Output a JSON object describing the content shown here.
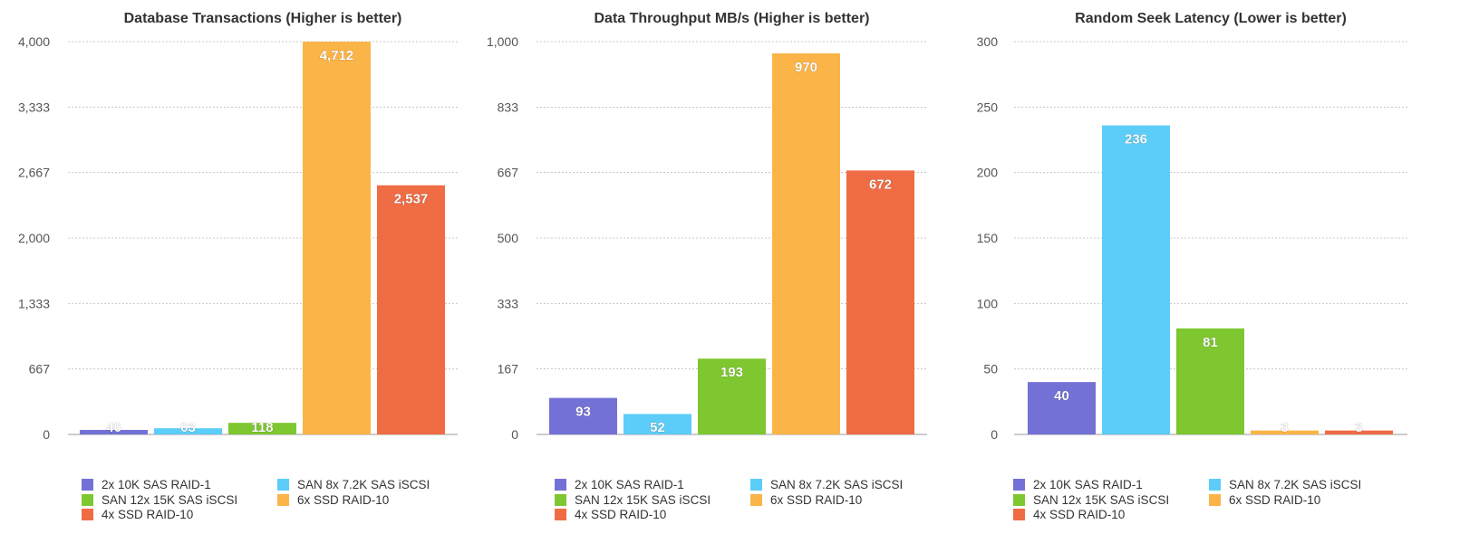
{
  "colors": {
    "2x 10K SAS RAID-1": "#7471d6",
    "SAN 8x 7.2K SAS iSCSI": "#5ccdf8",
    "SAN 12x 15K SAS iSCSI": "#7ec730",
    "6x SSD RAID-10": "#fbb448",
    "4x SSD RAID-10": "#f06c44"
  },
  "chart_data": [
    {
      "type": "bar",
      "title": "Database Transactions (Higher is better)",
      "xlabel": "",
      "ylabel": "",
      "ylim": [
        0,
        4000
      ],
      "yticks": [
        "0",
        "667",
        "1,333",
        "2,000",
        "2,667",
        "3,333",
        "4,000"
      ],
      "ytick_values": [
        0,
        667,
        1333,
        2000,
        2667,
        3333,
        4000
      ],
      "grid": true,
      "legend_position": "bottom",
      "series": [
        {
          "name": "2x 10K SAS RAID-1",
          "value": 46,
          "label": "46"
        },
        {
          "name": "SAN 8x 7.2K SAS iSCSI",
          "value": 63,
          "label": "63"
        },
        {
          "name": "SAN 12x 15K SAS iSCSI",
          "value": 118,
          "label": "118"
        },
        {
          "name": "6x SSD RAID-10",
          "value": 4712,
          "label": "4,712"
        },
        {
          "name": "4x SSD RAID-10",
          "value": 2537,
          "label": "2,537"
        }
      ]
    },
    {
      "type": "bar",
      "title": "Data Throughput MB/s (Higher is better)",
      "xlabel": "",
      "ylabel": "",
      "ylim": [
        0,
        1000
      ],
      "yticks": [
        "0",
        "167",
        "333",
        "500",
        "667",
        "833",
        "1,000"
      ],
      "ytick_values": [
        0,
        167,
        333,
        500,
        667,
        833,
        1000
      ],
      "grid": true,
      "legend_position": "bottom",
      "series": [
        {
          "name": "2x 10K SAS RAID-1",
          "value": 93,
          "label": "93"
        },
        {
          "name": "SAN 8x 7.2K SAS iSCSI",
          "value": 52,
          "label": "52"
        },
        {
          "name": "SAN 12x 15K SAS iSCSI",
          "value": 193,
          "label": "193"
        },
        {
          "name": "6x SSD RAID-10",
          "value": 970,
          "label": "970"
        },
        {
          "name": "4x SSD RAID-10",
          "value": 672,
          "label": "672"
        }
      ]
    },
    {
      "type": "bar",
      "title": "Random Seek Latency (Lower is better)",
      "xlabel": "",
      "ylabel": "",
      "ylim": [
        0,
        300
      ],
      "yticks": [
        "0",
        "50",
        "100",
        "150",
        "200",
        "250",
        "300"
      ],
      "ytick_values": [
        0,
        50,
        100,
        150,
        200,
        250,
        300
      ],
      "grid": true,
      "legend_position": "bottom",
      "series": [
        {
          "name": "2x 10K SAS RAID-1",
          "value": 40,
          "label": "40"
        },
        {
          "name": "SAN 8x 7.2K SAS iSCSI",
          "value": 236,
          "label": "236"
        },
        {
          "name": "SAN 12x 15K SAS iSCSI",
          "value": 81,
          "label": "81"
        },
        {
          "name": "6x SSD RAID-10",
          "value": 3,
          "label": "3"
        },
        {
          "name": "4x SSD RAID-10",
          "value": 3,
          "label": "3"
        }
      ]
    }
  ]
}
